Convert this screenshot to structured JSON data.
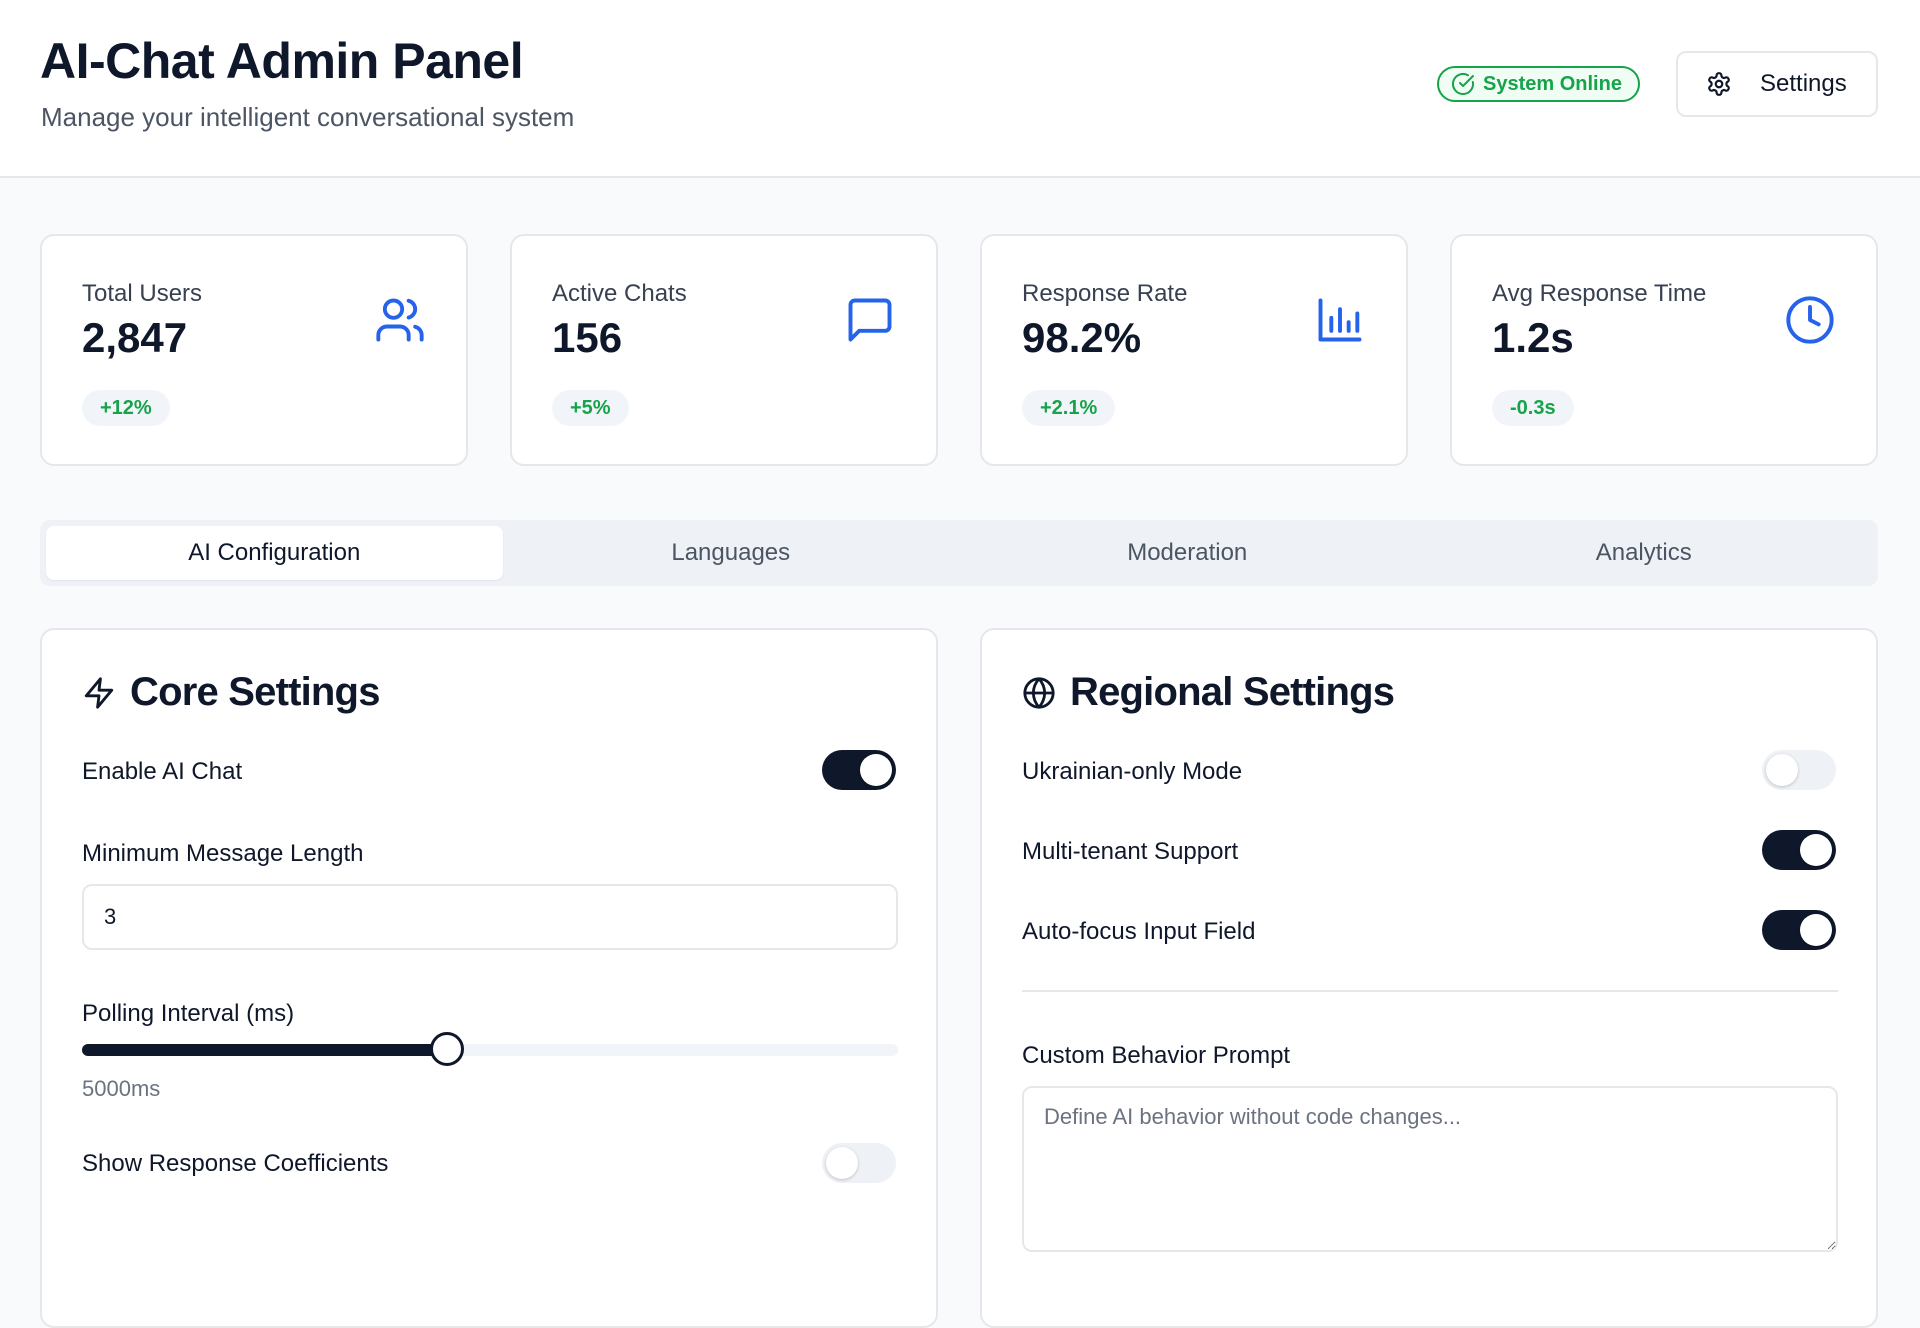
{
  "header": {
    "title": "AI-Chat Admin Panel",
    "subtitle": "Manage your intelligent conversational system",
    "status_label": "System Online",
    "settings_label": "Settings"
  },
  "stats": [
    {
      "label": "Total Users",
      "value": "2,847",
      "change": "+12%",
      "icon": "users-icon"
    },
    {
      "label": "Active Chats",
      "value": "156",
      "change": "+5%",
      "icon": "message-square-icon"
    },
    {
      "label": "Response Rate",
      "value": "98.2%",
      "change": "+2.1%",
      "icon": "bar-chart-icon"
    },
    {
      "label": "Avg Response Time",
      "value": "1.2s",
      "change": "-0.3s",
      "icon": "clock-icon"
    }
  ],
  "tabs": [
    {
      "label": "AI Configuration",
      "active": true
    },
    {
      "label": "Languages",
      "active": false
    },
    {
      "label": "Moderation",
      "active": false
    },
    {
      "label": "Analytics",
      "active": false
    }
  ],
  "core_settings": {
    "title": "Core Settings",
    "icon": "zap-icon",
    "enable_ai_chat": {
      "label": "Enable AI Chat",
      "on": true
    },
    "min_message_length": {
      "label": "Minimum Message Length",
      "value": "3"
    },
    "polling_interval": {
      "label": "Polling Interval (ms)",
      "value_text": "5000ms",
      "fraction": 0.447
    },
    "show_coefficients": {
      "label": "Show Response Coefficients",
      "on": false
    }
  },
  "regional_settings": {
    "title": "Regional Settings",
    "icon": "globe-icon",
    "ukrainian_only": {
      "label": "Ukrainian-only Mode",
      "on": false
    },
    "multi_tenant": {
      "label": "Multi-tenant Support",
      "on": true
    },
    "auto_focus": {
      "label": "Auto-focus Input Field",
      "on": true
    },
    "custom_prompt": {
      "label": "Custom Behavior Prompt",
      "placeholder": "Define AI behavior without code changes..."
    }
  },
  "colors": {
    "primary": "#0f172a",
    "accent_icon": "#2563eb",
    "success": "#16a34a",
    "background": "#f8fafc"
  }
}
